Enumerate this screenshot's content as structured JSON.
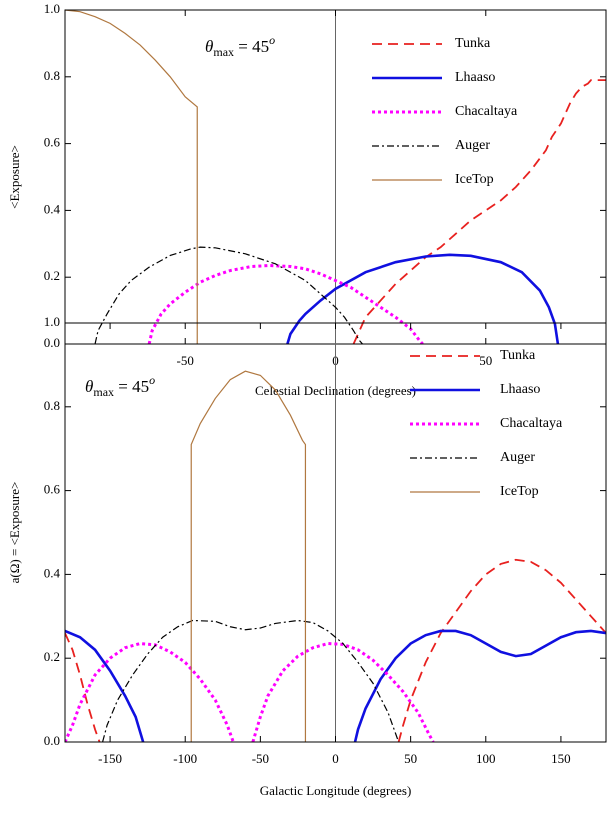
{
  "chart_data": [
    {
      "type": "line",
      "xlabel": "Celestial Declination (degrees)",
      "ylabel": "<Exposure>",
      "annotation": {
        "symbol": "θ",
        "subscript": "max",
        "text": " = 45",
        "superscript": "o"
      },
      "xlim": [
        -90,
        90
      ],
      "xticks": [
        -50,
        0,
        50
      ],
      "ylim": [
        0,
        1
      ],
      "yticks": [
        {
          "value": 0,
          "label": "0.0"
        },
        0.2,
        0.4,
        0.6,
        0.8,
        {
          "value": 1,
          "label": "1.0"
        }
      ],
      "legend": "upper right",
      "series": [
        {
          "name": "Tunka",
          "color": "#e8211f",
          "style": "dashed",
          "x": [
            6,
            8,
            10,
            15,
            20,
            25,
            30,
            35,
            40,
            45,
            50,
            55,
            60,
            65,
            70,
            72,
            75,
            78,
            80,
            82,
            84,
            85,
            90
          ],
          "values": [
            0,
            0.04,
            0.08,
            0.13,
            0.18,
            0.22,
            0.26,
            0.29,
            0.33,
            0.37,
            0.4,
            0.43,
            0.47,
            0.52,
            0.58,
            0.62,
            0.66,
            0.72,
            0.75,
            0.77,
            0.78,
            0.79,
            0.79
          ]
        },
        {
          "name": "Lhaaso",
          "color": "#1010e0",
          "style": "solid-thick",
          "x": [
            -16,
            -15,
            -12,
            -10,
            -5,
            0,
            10,
            20,
            30,
            38,
            45,
            55,
            62,
            68,
            71,
            73,
            74
          ],
          "values": [
            0,
            0.03,
            0.07,
            0.09,
            0.13,
            0.165,
            0.215,
            0.245,
            0.262,
            0.267,
            0.264,
            0.245,
            0.215,
            0.16,
            0.11,
            0.06,
            0
          ]
        },
        {
          "name": "Chacaltaya",
          "color": "#ff00ff",
          "style": "dotted",
          "x": [
            -62,
            -61,
            -58,
            -55,
            -50,
            -45,
            -40,
            -35,
            -28,
            -22,
            -15,
            -10,
            -5,
            0,
            5,
            10,
            15,
            20,
            25,
            28,
            29
          ],
          "values": [
            0,
            0.04,
            0.09,
            0.12,
            0.155,
            0.185,
            0.205,
            0.22,
            0.232,
            0.235,
            0.232,
            0.225,
            0.21,
            0.19,
            0.17,
            0.14,
            0.11,
            0.08,
            0.045,
            0.01,
            0
          ]
        },
        {
          "name": "Auger",
          "color": "#000000",
          "style": "dashdot",
          "x": [
            -80,
            -79,
            -76,
            -72,
            -68,
            -62,
            -55,
            -48,
            -45,
            -40,
            -30,
            -20,
            -10,
            -5,
            0,
            3,
            6,
            8,
            9
          ],
          "values": [
            0,
            0.04,
            0.09,
            0.15,
            0.19,
            0.23,
            0.265,
            0.285,
            0.29,
            0.288,
            0.27,
            0.24,
            0.19,
            0.15,
            0.11,
            0.08,
            0.04,
            0.01,
            0
          ]
        },
        {
          "name": "IceTop",
          "color": "#b07840",
          "style": "solid",
          "x": [
            -90,
            -85,
            -80,
            -75,
            -70,
            -65,
            -60,
            -55,
            -50,
            -46,
            -46
          ],
          "values": [
            1,
            0.995,
            0.98,
            0.96,
            0.93,
            0.895,
            0.85,
            0.8,
            0.74,
            0.71,
            0
          ]
        }
      ]
    },
    {
      "type": "line",
      "xlabel": "Galactic Longitude (degrees)",
      "ylabel": "a(Ω) = <Exposure>",
      "annotation": {
        "symbol": "θ",
        "subscript": "max",
        "text": " = 45",
        "superscript": "o"
      },
      "xlim": [
        -180,
        180
      ],
      "xticks": [
        -150,
        -100,
        -50,
        0,
        50,
        100,
        150
      ],
      "ylim": [
        0,
        1
      ],
      "yticks": [
        {
          "value": 0,
          "label": "0.0"
        },
        0.2,
        0.4,
        0.6,
        0.8,
        {
          "value": 1,
          "label": "1.0"
        }
      ],
      "legend": "upper right",
      "series": [
        {
          "name": "Tunka",
          "color": "#e8211f",
          "style": "dashed",
          "x": [
            -180,
            -175,
            -170,
            -165,
            -160,
            -157,
            0,
            42,
            45,
            50,
            60,
            70,
            80,
            90,
            100,
            110,
            120,
            130,
            140,
            150,
            160,
            170,
            180
          ],
          "values": [
            0.26,
            0.22,
            0.16,
            0.09,
            0.03,
            0,
            null,
            0,
            0.04,
            0.1,
            0.19,
            0.26,
            0.31,
            0.36,
            0.4,
            0.425,
            0.435,
            0.43,
            0.41,
            0.38,
            0.34,
            0.3,
            0.26
          ]
        },
        {
          "name": "Lhaaso",
          "color": "#1010e0",
          "style": "solid-thick",
          "x": [
            -180,
            -170,
            -160,
            -150,
            -140,
            -133,
            -128,
            0,
            13,
            15,
            20,
            30,
            40,
            50,
            60,
            70,
            80,
            90,
            100,
            110,
            120,
            130,
            140,
            150,
            160,
            170,
            180
          ],
          "values": [
            0.265,
            0.25,
            0.22,
            0.17,
            0.11,
            0.06,
            0,
            null,
            0,
            0.03,
            0.08,
            0.15,
            0.2,
            0.235,
            0.255,
            0.265,
            0.265,
            0.255,
            0.235,
            0.215,
            0.205,
            0.21,
            0.23,
            0.25,
            0.262,
            0.265,
            0.26
          ]
        },
        {
          "name": "Chacaltaya",
          "color": "#ff00ff",
          "style": "dotted",
          "x": [
            -180,
            -175,
            -170,
            -160,
            -150,
            -140,
            -130,
            -120,
            -110,
            -100,
            -90,
            -80,
            -72,
            -68,
            -60,
            -55,
            -50,
            -45,
            -35,
            -25,
            -15,
            -5,
            5,
            15,
            25,
            35,
            45,
            55,
            62,
            65
          ],
          "values": [
            0,
            0.04,
            0.09,
            0.16,
            0.2,
            0.225,
            0.235,
            0.232,
            0.215,
            0.19,
            0.15,
            0.1,
            0.04,
            0,
            null,
            0,
            0.06,
            0.11,
            0.17,
            0.205,
            0.225,
            0.235,
            0.233,
            0.22,
            0.195,
            0.16,
            0.12,
            0.07,
            0.02,
            0
          ]
        },
        {
          "name": "Auger",
          "color": "#000000",
          "style": "dashdot",
          "x": [
            -155,
            -152,
            -145,
            -135,
            -125,
            -115,
            -105,
            -95,
            -80,
            -70,
            -60,
            -50,
            -40,
            -25,
            -15,
            -5,
            5,
            15,
            25,
            35,
            40,
            42
          ],
          "values": [
            0,
            0.04,
            0.1,
            0.16,
            0.21,
            0.25,
            0.275,
            0.29,
            0.288,
            0.275,
            0.268,
            0.272,
            0.283,
            0.29,
            0.285,
            0.265,
            0.235,
            0.19,
            0.14,
            0.07,
            0.02,
            0
          ]
        },
        {
          "name": "IceTop",
          "color": "#b07840",
          "style": "solid",
          "x": [
            -96,
            -96,
            -90,
            -80,
            -70,
            -60,
            -50,
            -40,
            -30,
            -22,
            -20,
            -20
          ],
          "values": [
            0,
            0.71,
            0.76,
            0.82,
            0.865,
            0.885,
            0.875,
            0.84,
            0.78,
            0.72,
            0.71,
            0
          ]
        }
      ]
    }
  ]
}
